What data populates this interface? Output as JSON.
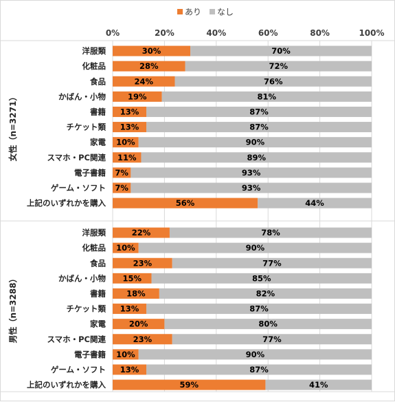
{
  "chart_data": {
    "type": "bar",
    "orientation": "horizontal",
    "stacked": true,
    "xlim": [
      0,
      100
    ],
    "x_ticks": [
      "0%",
      "20%",
      "40%",
      "60%",
      "80%",
      "100%"
    ],
    "x_tick_values": [
      0,
      20,
      40,
      60,
      80,
      100
    ],
    "legend_position": "top-center",
    "series": [
      {
        "name": "あり",
        "color": "#ed7d31"
      },
      {
        "name": "なし",
        "color": "#bfbfbf"
      }
    ],
    "groups": [
      {
        "label": "女性（n=3271）",
        "categories": [
          "洋服類",
          "化粧品",
          "食品",
          "かばん・小物",
          "書籍",
          "チケット類",
          "家電",
          "スマホ・PC関連",
          "電子書籍",
          "ゲーム・ソフト",
          "上記のいずれかを購入"
        ],
        "ari": [
          30,
          28,
          24,
          19,
          13,
          13,
          10,
          11,
          7,
          7,
          56
        ],
        "nashi": [
          70,
          72,
          76,
          81,
          87,
          87,
          90,
          89,
          93,
          93,
          44
        ],
        "ari_labels": [
          "30%",
          "28%",
          "24%",
          "19%",
          "13%",
          "13%",
          "10%",
          "11%",
          "7%",
          "7%",
          "56%"
        ],
        "nashi_labels": [
          "70%",
          "72%",
          "76%",
          "81%",
          "87%",
          "87%",
          "90%",
          "89%",
          "93%",
          "93%",
          "44%"
        ]
      },
      {
        "label": "男性（n=3288）",
        "categories": [
          "洋服類",
          "化粧品",
          "食品",
          "かばん・小物",
          "書籍",
          "チケット類",
          "家電",
          "スマホ・PC関連",
          "電子書籍",
          "ゲーム・ソフト",
          "上記のいずれかを購入"
        ],
        "ari": [
          22,
          10,
          23,
          15,
          18,
          13,
          20,
          23,
          10,
          13,
          59
        ],
        "nashi": [
          78,
          90,
          77,
          85,
          82,
          87,
          80,
          77,
          90,
          87,
          41
        ],
        "ari_labels": [
          "22%",
          "10%",
          "23%",
          "15%",
          "18%",
          "13%",
          "20%",
          "23%",
          "10%",
          "13%",
          "59%"
        ],
        "nashi_labels": [
          "78%",
          "90%",
          "77%",
          "85%",
          "82%",
          "87%",
          "80%",
          "77%",
          "90%",
          "87%",
          "41%"
        ]
      }
    ]
  }
}
